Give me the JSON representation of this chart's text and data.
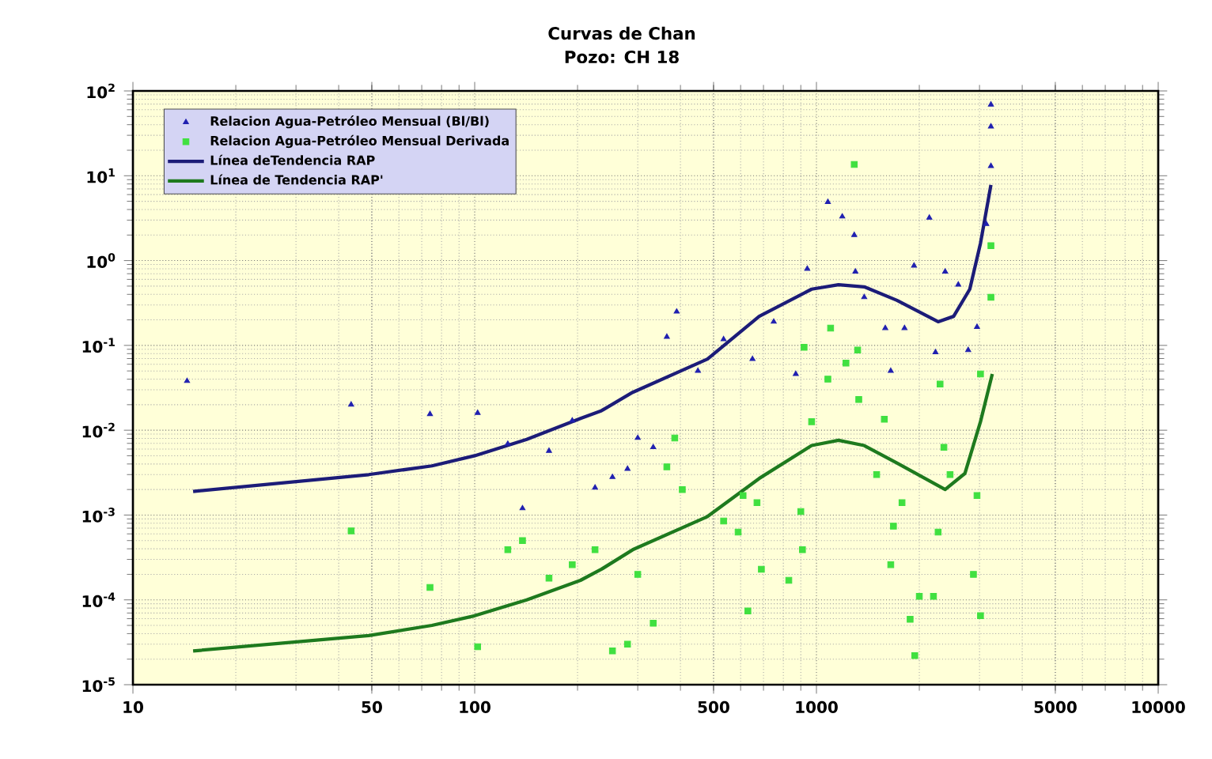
{
  "chart_data": {
    "type": "scatter",
    "title": "Curvas de Chan",
    "subtitle": "Pozo: CH 18",
    "log": "xy",
    "grid": true,
    "legend": "top left",
    "xlim": [
      10,
      10000
    ],
    "xticks": [
      10,
      50,
      100,
      500,
      1000,
      5000,
      10000
    ],
    "ylim": [
      1e-05,
      100
    ],
    "yticks": [
      {
        "value": 1e-05,
        "label": "10$^{-5}$"
      },
      {
        "value": 0.0001,
        "label": "10$^{-4}$"
      },
      {
        "value": 0.001,
        "label": "10$^{-3}$"
      },
      {
        "value": 0.01,
        "label": "10$^{-2}$"
      },
      {
        "value": 0.1,
        "label": "10$^{-1}$"
      },
      {
        "value": 1,
        "label": "10$^{0}$"
      },
      {
        "value": 10,
        "label": "10$^{1}$"
      },
      {
        "value": 100,
        "label": "10$^{2}$"
      }
    ],
    "series": [
      {
        "name": "Relacion Agua-Petróleo Mensual (Bl/Bl)",
        "marker": "triangle",
        "color": "#2020b0",
        "x": [
          14.4,
          43.5,
          74,
          102,
          125,
          138,
          165,
          193,
          225,
          253,
          280,
          300,
          333,
          365,
          390,
          450,
          535,
          650,
          750,
          870,
          940,
          1080,
          1190,
          1290,
          1300,
          1380,
          1650,
          1930,
          2140,
          1590,
          1810,
          2230,
          2380,
          2600,
          2780,
          2950,
          3140,
          3240,
          3240,
          3240
        ],
        "values": [
          0.038,
          0.02,
          0.0155,
          0.016,
          0.0069,
          0.0012,
          0.0057,
          0.013,
          0.0021,
          0.0028,
          0.0035,
          0.0081,
          0.0063,
          0.126,
          0.25,
          0.05,
          0.118,
          0.069,
          0.19,
          0.046,
          0.8,
          4.9,
          3.3,
          2.0,
          0.74,
          0.37,
          0.05,
          0.87,
          3.2,
          0.16,
          0.16,
          0.083,
          0.74,
          0.52,
          0.088,
          0.165,
          2.7,
          13,
          38,
          69
        ]
      },
      {
        "name": "Relacion Agua-Petróleo Mensual Derivada",
        "marker": "square",
        "color": "#40e040",
        "x": [
          43.5,
          74,
          102,
          125,
          138,
          165,
          193,
          225,
          253,
          280,
          300,
          333,
          385,
          365,
          405,
          535,
          590,
          610,
          630,
          670,
          690,
          830,
          900,
          910,
          920,
          968,
          1080,
          1100,
          1220,
          1330,
          1320,
          1580,
          1500,
          1680,
          1650,
          1780,
          2000,
          1880,
          1940,
          2200,
          2270,
          2300,
          2360,
          2460,
          2950,
          2880,
          3020,
          3020,
          3240,
          3240,
          1290
        ],
        "values": [
          0.00065,
          0.00014,
          2.8e-05,
          0.00039,
          0.0005,
          0.00018,
          0.00026,
          0.00039,
          2.5e-05,
          3e-05,
          0.0002,
          5.3e-05,
          0.0081,
          0.0037,
          0.002,
          0.00085,
          0.00063,
          0.0017,
          7.4e-05,
          0.0014,
          0.00023,
          0.00017,
          0.0011,
          0.00039,
          0.095,
          0.0126,
          0.04,
          0.16,
          0.062,
          0.023,
          0.088,
          0.0135,
          0.003,
          0.00074,
          0.00026,
          0.0014,
          0.00011,
          5.9e-05,
          2.2e-05,
          0.00011,
          0.00063,
          0.035,
          0.0063,
          0.003,
          0.0017,
          0.0002,
          6.5e-05,
          0.046,
          0.37,
          1.5,
          13.6
        ]
      },
      {
        "name": "Línea deTendencia RAP",
        "type": "line",
        "line_style": "solid",
        "marker": "none",
        "color": "#1c1c78",
        "x": [
          15,
          49,
          75,
          100,
          142,
          204,
          235,
          290,
          480,
          680,
          968,
          1160,
          1380,
          1720,
          2270,
          2520,
          2810,
          3020,
          3240
        ],
        "values": [
          0.0019,
          0.003,
          0.0038,
          0.005,
          0.0078,
          0.0138,
          0.017,
          0.028,
          0.069,
          0.22,
          0.46,
          0.52,
          0.49,
          0.34,
          0.19,
          0.22,
          0.46,
          1.6,
          7.8
        ]
      },
      {
        "name": "Línea de Tendencia RAP'",
        "type": "line",
        "line_style": "solid",
        "marker": "none",
        "color": "#1e7a1e",
        "x": [
          15,
          49,
          75,
          100,
          142,
          204,
          235,
          290,
          480,
          680,
          968,
          1160,
          1380,
          1720,
          2380,
          2720,
          3020,
          3270
        ],
        "values": [
          2.5e-05,
          3.8e-05,
          5e-05,
          6.5e-05,
          0.0001,
          0.00017,
          0.00023,
          0.00039,
          0.00096,
          0.0027,
          0.0066,
          0.0076,
          0.0066,
          0.0041,
          0.002,
          0.0031,
          0.0126,
          0.046
        ]
      }
    ]
  }
}
